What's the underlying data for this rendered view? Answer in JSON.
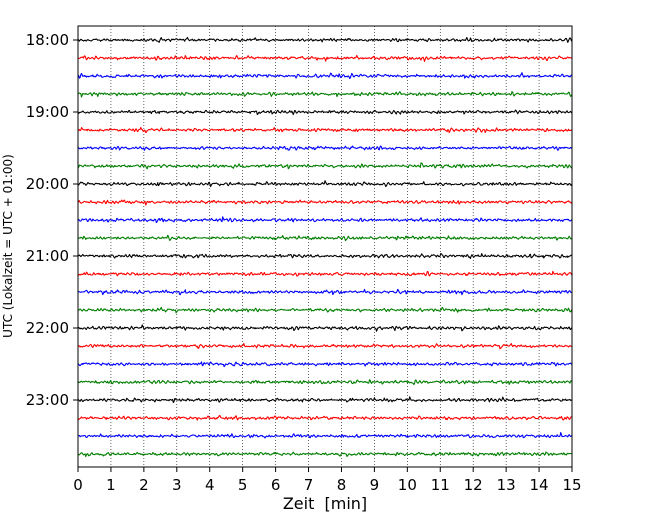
{
  "chart_data": {
    "type": "line",
    "title": "",
    "xlabel": "Zeit  [min]",
    "ylabel": "UTC (Lokalzeit = UTC + 01:00)",
    "xlim": [
      0,
      15
    ],
    "x_ticks": [
      0,
      1,
      2,
      3,
      4,
      5,
      6,
      7,
      8,
      9,
      10,
      11,
      12,
      13,
      14,
      15
    ],
    "y_tick_labels": [
      "18:00",
      "19:00",
      "20:00",
      "21:00",
      "22:00",
      "23:00"
    ],
    "trace_start_hour": 18,
    "traces_per_hour": 4,
    "trace_count": 24,
    "trace_colors": [
      "#000000",
      "#ff0000",
      "#0000ff",
      "#007f00"
    ],
    "grid": {
      "x": true,
      "style": "dotted"
    },
    "legend": "none"
  }
}
